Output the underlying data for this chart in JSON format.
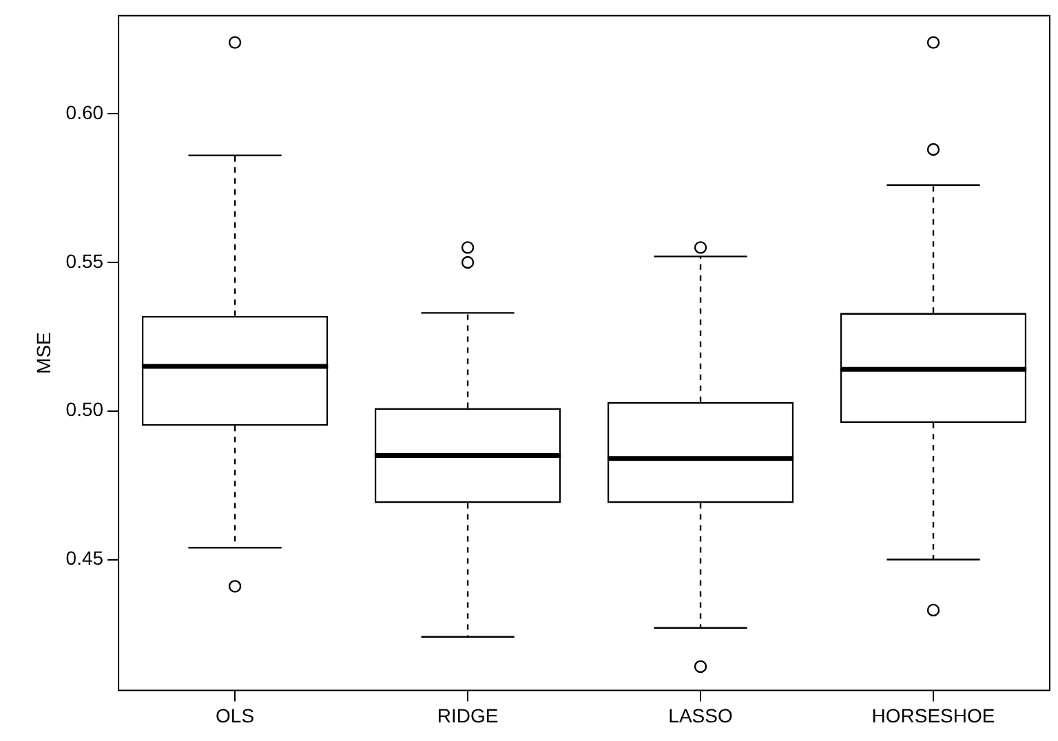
{
  "chart_data": {
    "type": "box",
    "ylabel": "MSE",
    "categories": [
      "OLS",
      "RIDGE",
      "LASSO",
      "HORSESHOE"
    ],
    "boxes": [
      {
        "low": 0.454,
        "q1": 0.495,
        "median": 0.515,
        "q3": 0.532,
        "high": 0.586,
        "outliers": [
          0.624,
          0.441
        ]
      },
      {
        "low": 0.424,
        "q1": 0.469,
        "median": 0.485,
        "q3": 0.501,
        "high": 0.533,
        "outliers": [
          0.555,
          0.55
        ]
      },
      {
        "low": 0.427,
        "q1": 0.469,
        "median": 0.484,
        "q3": 0.503,
        "high": 0.552,
        "outliers": [
          0.555,
          0.414
        ]
      },
      {
        "low": 0.45,
        "q1": 0.496,
        "median": 0.514,
        "q3": 0.533,
        "high": 0.576,
        "outliers": [
          0.624,
          0.588,
          0.433
        ]
      }
    ],
    "ylim": [
      0.406,
      0.633
    ],
    "yticks": [
      0.45,
      {
        "value": 0.5,
        "label": "0.50"
      },
      0.55,
      {
        "value": 0.6,
        "label": "0.60"
      }
    ],
    "grid": false
  }
}
